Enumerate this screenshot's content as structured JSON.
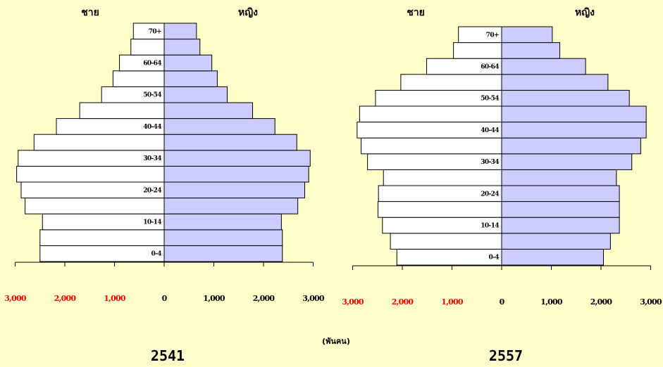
{
  "colors": {
    "background": "#ffffcc",
    "male_fill": "#ffffff",
    "female_fill": "#ccccff",
    "outline": "#000000",
    "tick_red": "#ff0000",
    "tick_black": "#000000"
  },
  "unit_label": "(พันคน)",
  "chart_data": [
    {
      "type": "bar",
      "orientation": "horizontal-population-pyramid",
      "title": "2541",
      "male_label": "ชาย",
      "female_label": "หญิง",
      "age_groups": [
        "0-4",
        "5-9",
        "10-14",
        "15-19",
        "20-24",
        "25-29",
        "30-34",
        "35-39",
        "40-44",
        "45-49",
        "50-54",
        "55-59",
        "60-64",
        "65-69",
        "70+"
      ],
      "age_labels_shown": [
        "0-4",
        "",
        "10-14",
        "",
        "20-24",
        "",
        "30-34",
        "",
        "40-44",
        "",
        "50-54",
        "",
        "60-64",
        "",
        "70+"
      ],
      "series": [
        {
          "name": "ชาย",
          "values": [
            2500,
            2500,
            2450,
            2800,
            2880,
            2970,
            2940,
            2620,
            2170,
            1700,
            1260,
            1030,
            900,
            670,
            620
          ]
        },
        {
          "name": "หญิง",
          "values": [
            2380,
            2380,
            2360,
            2690,
            2830,
            2910,
            2940,
            2670,
            2230,
            1780,
            1270,
            1070,
            960,
            720,
            650
          ]
        }
      ],
      "x_ticks": [
        {
          "label": "3,000",
          "value": -3000,
          "color": "red"
        },
        {
          "label": "2,000",
          "value": -2000,
          "color": "red"
        },
        {
          "label": "1,000",
          "value": -1000,
          "color": "red"
        },
        {
          "label": "0",
          "value": 0,
          "color": "black"
        },
        {
          "label": "1,000",
          "value": 1000,
          "color": "black"
        },
        {
          "label": "2,000",
          "value": 2000,
          "color": "black"
        },
        {
          "label": "3,000",
          "value": 3000,
          "color": "black"
        }
      ],
      "xlim": [
        -3000,
        3000
      ]
    },
    {
      "type": "bar",
      "orientation": "horizontal-population-pyramid",
      "title": "2557",
      "male_label": "ชาย",
      "female_label": "หญิง",
      "age_groups": [
        "0-4",
        "5-9",
        "10-14",
        "15-19",
        "20-24",
        "25-29",
        "30-34",
        "35-39",
        "40-44",
        "45-49",
        "50-54",
        "55-59",
        "60-64",
        "65-69",
        "70+"
      ],
      "age_labels_shown": [
        "0-4",
        "",
        "10-14",
        "",
        "20-24",
        "",
        "30-34",
        "",
        "40-44",
        "",
        "50-54",
        "",
        "60-64",
        "",
        "70+"
      ],
      "series": [
        {
          "name": "ชาย",
          "values": [
            2110,
            2240,
            2400,
            2490,
            2480,
            2380,
            2700,
            2830,
            2910,
            2860,
            2540,
            2030,
            1510,
            970,
            870
          ]
        },
        {
          "name": "หญิง",
          "values": [
            2050,
            2190,
            2370,
            2370,
            2370,
            2310,
            2620,
            2800,
            2910,
            2910,
            2570,
            2140,
            1690,
            1170,
            1020
          ]
        }
      ],
      "x_ticks": [
        {
          "label": "3,000",
          "value": -3000,
          "color": "red"
        },
        {
          "label": "2,000",
          "value": -2000,
          "color": "red"
        },
        {
          "label": "1,000",
          "value": -1000,
          "color": "red"
        },
        {
          "label": "0",
          "value": 0,
          "color": "black"
        },
        {
          "label": "1,000",
          "value": 1000,
          "color": "black"
        },
        {
          "label": "2,000",
          "value": 2000,
          "color": "black"
        },
        {
          "label": "3,000",
          "value": 3000,
          "color": "black"
        }
      ],
      "xlim": [
        -3000,
        3000
      ]
    }
  ]
}
